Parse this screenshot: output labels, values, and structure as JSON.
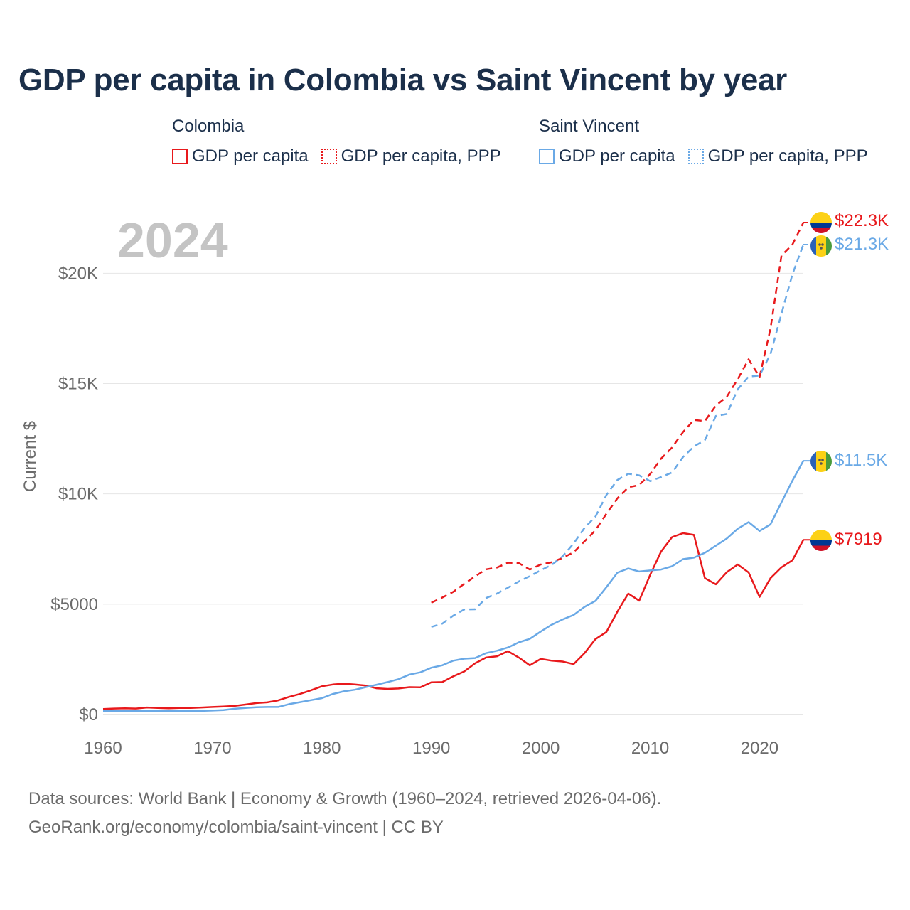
{
  "title": "GDP per capita in Colombia vs Saint Vincent by year",
  "legend": {
    "groups": [
      {
        "name": "Colombia",
        "items": [
          {
            "label": "GDP per capita",
            "style": "solid",
            "color": "#e8191c"
          },
          {
            "label": "GDP per capita, PPP",
            "style": "dashed",
            "color": "#e8191c"
          }
        ]
      },
      {
        "name": "Saint Vincent",
        "items": [
          {
            "label": "GDP per capita",
            "style": "solid",
            "color": "#6aa9e6"
          },
          {
            "label": "GDP per capita, PPP",
            "style": "dashed",
            "color": "#6aa9e6"
          }
        ]
      }
    ]
  },
  "source": {
    "line1": "Data sources: World Bank | Economy & Growth (1960–2024, retrieved 2026-04-06).",
    "line2": "GeoRank.org/economy/colombia/saint-vincent | CC BY"
  },
  "chart_data": {
    "type": "line",
    "title": "GDP per capita in Colombia vs Saint Vincent by year",
    "year_watermark": "2024",
    "ylabel": "Current $",
    "xlabel": "",
    "xlim": [
      1960,
      2024
    ],
    "ylim": [
      0,
      22300
    ],
    "x_ticks": [
      1960,
      1970,
      1980,
      1990,
      2000,
      2010,
      2020
    ],
    "y_ticks": [
      0,
      5000,
      10000,
      15000,
      20000
    ],
    "y_tick_labels": [
      "$0",
      "$5000",
      "$10K",
      "$15K",
      "$20K"
    ],
    "grid": true,
    "colors": {
      "colombia": "#e8191c",
      "saint_vincent": "#6aa9e6"
    },
    "series": [
      {
        "name": "Colombia GDP per capita",
        "country": "Colombia",
        "style": "solid",
        "color": "#e8191c",
        "end_label": "$7919",
        "x": [
          1960,
          1961,
          1962,
          1963,
          1964,
          1965,
          1966,
          1967,
          1968,
          1969,
          1970,
          1971,
          1972,
          1973,
          1974,
          1975,
          1976,
          1977,
          1978,
          1979,
          1980,
          1981,
          1982,
          1983,
          1984,
          1985,
          1986,
          1987,
          1988,
          1989,
          1990,
          1991,
          1992,
          1993,
          1994,
          1995,
          1996,
          1997,
          1998,
          1999,
          2000,
          2001,
          2002,
          2003,
          2004,
          2005,
          2006,
          2007,
          2008,
          2009,
          2010,
          2011,
          2012,
          2013,
          2014,
          2015,
          2016,
          2017,
          2018,
          2019,
          2020,
          2021,
          2022,
          2023,
          2024
        ],
        "values": [
          250,
          270,
          280,
          270,
          320,
          300,
          280,
          300,
          300,
          320,
          340,
          360,
          390,
          450,
          520,
          550,
          640,
          800,
          930,
          1100,
          1280,
          1360,
          1400,
          1360,
          1310,
          1190,
          1160,
          1180,
          1240,
          1230,
          1460,
          1470,
          1730,
          1950,
          2320,
          2580,
          2640,
          2870,
          2580,
          2230,
          2520,
          2440,
          2400,
          2280,
          2780,
          3420,
          3740,
          4660,
          5480,
          5160,
          6330,
          7390,
          8040,
          8220,
          8140,
          6180,
          5900,
          6450,
          6800,
          6440,
          5330,
          6180,
          6670,
          6990,
          7919
        ]
      },
      {
        "name": "Colombia GDP per capita, PPP",
        "country": "Colombia",
        "style": "dashed",
        "color": "#e8191c",
        "end_label": "$22.3K",
        "x": [
          1990,
          1991,
          1992,
          1993,
          1994,
          1995,
          1996,
          1997,
          1998,
          1999,
          2000,
          2001,
          2002,
          2003,
          2004,
          2005,
          2006,
          2007,
          2008,
          2009,
          2010,
          2011,
          2012,
          2013,
          2014,
          2015,
          2016,
          2017,
          2018,
          2019,
          2020,
          2021,
          2022,
          2023,
          2024
        ],
        "values": [
          5070,
          5300,
          5560,
          5920,
          6260,
          6580,
          6660,
          6880,
          6860,
          6570,
          6800,
          6900,
          7100,
          7350,
          7850,
          8350,
          9100,
          9800,
          10300,
          10400,
          10900,
          11600,
          12100,
          12800,
          13350,
          13300,
          14000,
          14400,
          15200,
          16100,
          15300,
          17500,
          20800,
          21300,
          22300
        ]
      },
      {
        "name": "Saint Vincent GDP per capita",
        "country": "Saint Vincent",
        "style": "solid",
        "color": "#6aa9e6",
        "end_label": "$11.5K",
        "x": [
          1960,
          1961,
          1962,
          1963,
          1964,
          1965,
          1966,
          1967,
          1968,
          1969,
          1970,
          1971,
          1972,
          1973,
          1974,
          1975,
          1976,
          1977,
          1978,
          1979,
          1980,
          1981,
          1982,
          1983,
          1984,
          1985,
          1986,
          1987,
          1988,
          1989,
          1990,
          1991,
          1992,
          1993,
          1994,
          1995,
          1996,
          1997,
          1998,
          1999,
          2000,
          2001,
          2002,
          2003,
          2004,
          2005,
          2006,
          2007,
          2008,
          2009,
          2010,
          2011,
          2012,
          2013,
          2014,
          2015,
          2016,
          2017,
          2018,
          2019,
          2020,
          2021,
          2022,
          2023,
          2024
        ],
        "values": [
          160,
          165,
          165,
          165,
          165,
          165,
          160,
          160,
          160,
          165,
          180,
          200,
          260,
          300,
          330,
          340,
          340,
          470,
          560,
          650,
          740,
          930,
          1050,
          1120,
          1240,
          1350,
          1470,
          1600,
          1810,
          1910,
          2120,
          2230,
          2440,
          2530,
          2560,
          2780,
          2890,
          3040,
          3270,
          3430,
          3760,
          4070,
          4310,
          4510,
          4880,
          5150,
          5770,
          6430,
          6620,
          6480,
          6530,
          6570,
          6720,
          7040,
          7110,
          7330,
          7650,
          7980,
          8420,
          8720,
          8320,
          8620,
          9620,
          10600,
          11500
        ]
      },
      {
        "name": "Saint Vincent GDP per capita, PPP",
        "country": "Saint Vincent",
        "style": "dashed",
        "color": "#6aa9e6",
        "end_label": "$21.3K",
        "x": [
          1990,
          1991,
          1992,
          1993,
          1994,
          1995,
          1996,
          1997,
          1998,
          1999,
          2000,
          2001,
          2002,
          2003,
          2004,
          2005,
          2006,
          2007,
          2008,
          2009,
          2010,
          2011,
          2012,
          2013,
          2014,
          2015,
          2016,
          2017,
          2018,
          2019,
          2020,
          2021,
          2022,
          2023,
          2024
        ],
        "values": [
          3970,
          4120,
          4480,
          4760,
          4770,
          5280,
          5480,
          5750,
          6030,
          6270,
          6540,
          6780,
          7170,
          7750,
          8460,
          8970,
          9950,
          10630,
          10910,
          10840,
          10580,
          10760,
          10970,
          11670,
          12150,
          12440,
          13530,
          13620,
          14740,
          15320,
          15360,
          16340,
          18170,
          19950,
          21300
        ]
      }
    ]
  }
}
